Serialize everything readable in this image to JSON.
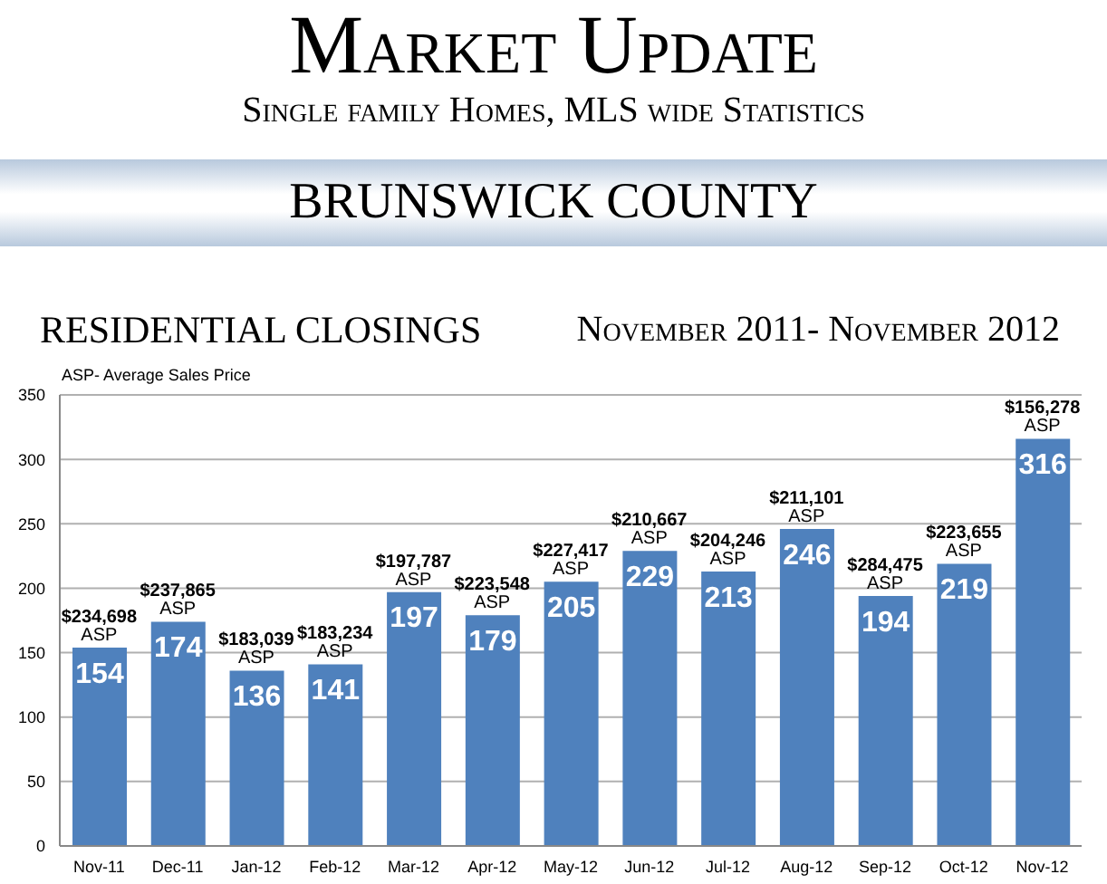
{
  "chart_data": {
    "type": "bar",
    "title": "Market Update",
    "subtitle": "Single family Homes, MLS wide Statistics",
    "categories": [
      "Nov-11",
      "Dec-11",
      "Jan-12",
      "Feb-12",
      "Mar-12",
      "Apr-12",
      "May-12",
      "Jun-12",
      "Jul-12",
      "Aug-12",
      "Sep-12",
      "Oct-12",
      "Nov-12"
    ],
    "values": [
      154,
      174,
      136,
      141,
      197,
      179,
      205,
      229,
      213,
      246,
      194,
      219,
      316
    ],
    "color": "#4f81bd",
    "data_labels": true,
    "grid": "y",
    "ylim": [
      0,
      350
    ],
    "yticks": [
      0,
      50,
      100,
      150,
      200,
      250,
      300,
      350
    ],
    "annotations": [
      "BRUNSWICK COUNTY",
      "RESIDENTIAL CLOSINGS",
      "November 2011- November 2012",
      "ASP- Average Sales Price",
      {
        "text": "$234,698\nASP",
        "x": "Nov-11",
        "y": 154
      },
      {
        "text": "$237,865\nASP",
        "x": "Dec-11",
        "y": 174
      },
      {
        "text": "$183,039\nASP",
        "x": "Jan-12",
        "y": 136
      },
      {
        "text": "$183,234\nASP",
        "x": "Feb-12",
        "y": 141
      },
      {
        "text": "$197,787\nASP",
        "x": "Mar-12",
        "y": 197
      },
      {
        "text": "$223,548\nASP",
        "x": "Apr-12",
        "y": 179
      },
      {
        "text": "$227,417\nASP",
        "x": "May-12",
        "y": 205
      },
      {
        "text": "$210,667\nASP",
        "x": "Jun-12",
        "y": 229
      },
      {
        "text": "$204,246\nASP",
        "x": "Jul-12",
        "y": 213
      },
      {
        "text": "$211,101\nASP",
        "x": "Aug-12",
        "y": 246
      },
      {
        "text": "$284,475\nASP",
        "x": "Sep-12",
        "y": 194
      },
      {
        "text": "$223,655\nASP",
        "x": "Oct-12",
        "y": 219
      },
      {
        "text": "$156,278\nASP",
        "x": "Nov-12",
        "y": 316
      }
    ]
  }
}
